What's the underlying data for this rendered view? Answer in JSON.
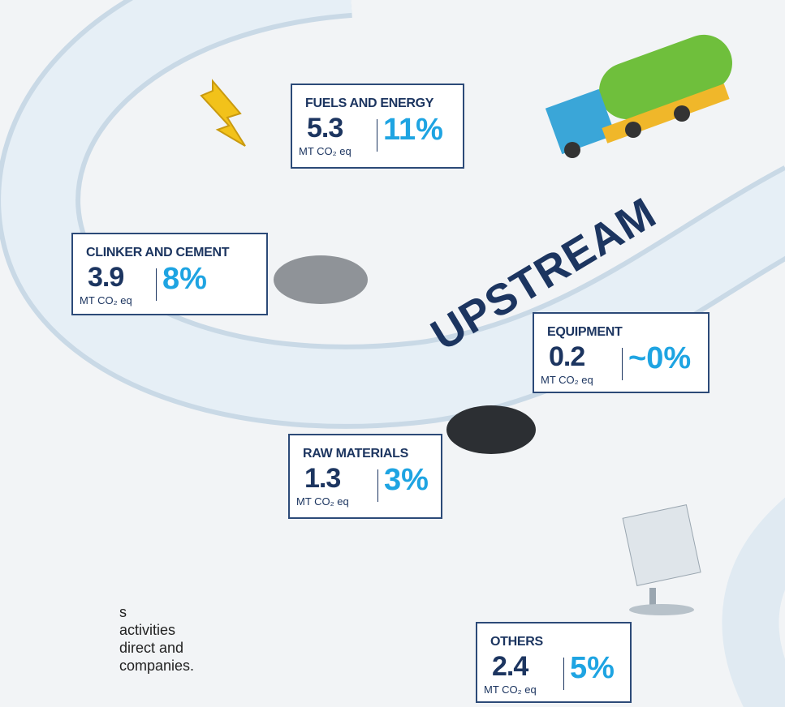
{
  "road_label": "UPSTREAM",
  "cards": [
    {
      "title": "FUELS AND ENERGY",
      "value": "5.3",
      "unit": "MT CO₂ eq",
      "percent": "11%"
    },
    {
      "title": "CLINKER AND CEMENT",
      "value": "3.9",
      "unit": "MT CO₂ eq",
      "percent": "8%"
    },
    {
      "title": "EQUIPMENT",
      "value": "0.2",
      "unit": "MT CO₂ eq",
      "percent": "~0%"
    },
    {
      "title": "RAW MATERIALS",
      "value": "1.3",
      "unit": "MT CO₂ eq",
      "percent": "3%"
    },
    {
      "title": "OTHERS",
      "value": "2.4",
      "unit": "MT CO₂ eq",
      "percent": "5%"
    }
  ],
  "side_text": [
    "s",
    "activities",
    "direct and",
    "companies."
  ]
}
